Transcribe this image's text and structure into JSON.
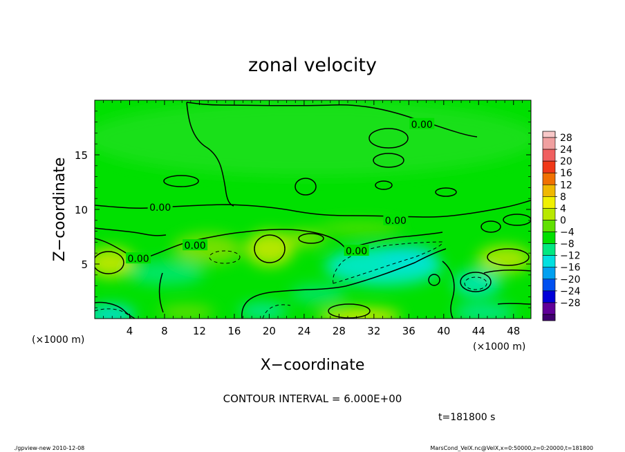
{
  "chart_data": {
    "type": "heatmap",
    "title": "zonal velocity",
    "xlabel": "X−coordinate",
    "ylabel": "Z−coordinate",
    "x_unit": "(×1000 m)",
    "y_unit": "(×1000 m)",
    "xlim": [
      0,
      50
    ],
    "ylim": [
      0,
      20
    ],
    "x_ticks": [
      4,
      8,
      12,
      16,
      20,
      24,
      28,
      32,
      36,
      40,
      44,
      48
    ],
    "y_ticks": [
      5,
      10,
      15
    ],
    "x_tick_labels": [
      "4",
      "8",
      "12",
      "16",
      "20",
      "24",
      "28",
      "32",
      "36",
      "40",
      "44",
      "48"
    ],
    "y_tick_labels": [
      "5",
      "10",
      "15"
    ],
    "colorbar": {
      "levels": [
        28,
        24,
        20,
        16,
        12,
        8,
        4,
        0,
        -4,
        -8,
        -12,
        -16,
        -20,
        -24,
        -28
      ],
      "labels": [
        "28",
        "24",
        "20",
        "16",
        "12",
        "8",
        "4",
        "0",
        "−4",
        "−8",
        "−12",
        "−16",
        "−20",
        "−24",
        "−28"
      ],
      "colors": [
        "#f0a0a0",
        "#f06060",
        "#f03818",
        "#f07000",
        "#f0b800",
        "#f0f000",
        "#b8e800",
        "#60e000",
        "#00e000",
        "#00e880",
        "#00e0e0",
        "#00a0f0",
        "#0050f0",
        "#0000d8",
        "#600098"
      ],
      "extend_arrow_top": true,
      "extend_arrow_bottom": true
    },
    "contour_labels": [
      {
        "text": "0.00",
        "x": 7.5,
        "z": 10.2
      },
      {
        "text": "0.00",
        "x": 11.5,
        "z": 6.7
      },
      {
        "text": "0.00",
        "x": 5.0,
        "z": 5.5
      },
      {
        "text": "0.00",
        "x": 34.5,
        "z": 9.0
      },
      {
        "text": "0.00",
        "x": 30.0,
        "z": 6.2
      },
      {
        "text": "0.00",
        "x": 37.5,
        "z": 17.8
      }
    ],
    "contour_interval_text": "CONTOUR INTERVAL = 6.000E+00",
    "time_text": "t=181800 s"
  },
  "footer": {
    "left": "./gpview-new  2010-12-08",
    "right": "MarsCond_VelX.nc@VelX,x=0:50000,z=0:20000,t=181800"
  }
}
